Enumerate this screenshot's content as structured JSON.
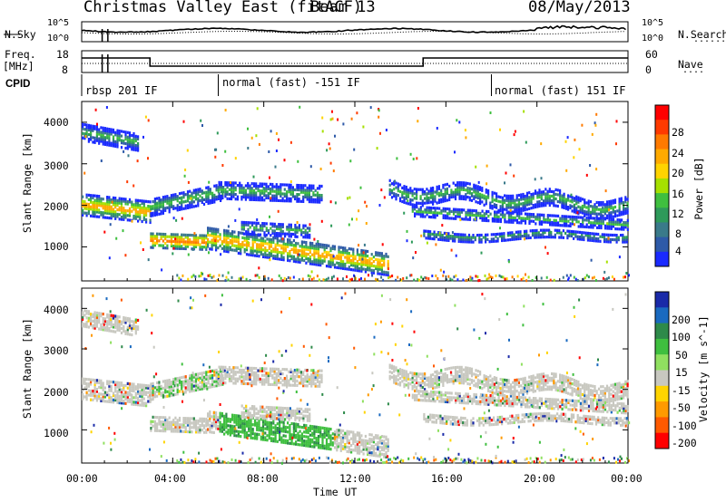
{
  "header": {
    "title": "Christmas Valley East (fitACF)",
    "beam": "Beam 13",
    "date": "08/May/2013"
  },
  "top_panels": {
    "nsky_label": "N.Sky",
    "nsearch_label": "N.Search",
    "noise_ticks_left": [
      "10^5",
      "10^0"
    ],
    "noise_ticks_right": [
      "10^5",
      "10^0"
    ],
    "freq_label_line1": "Freq.",
    "freq_label_line2": "[MHz]",
    "freq_ticks": [
      "18",
      "8"
    ],
    "nave_label": "Nave",
    "nave_ticks": [
      "60",
      "0"
    ],
    "cpid_label": "CPID",
    "cpid_modes": [
      {
        "label": "rbsp 201 IF",
        "start_hour": 0
      },
      {
        "label": "normal (fast) -151 IF",
        "start_hour": 6
      },
      {
        "label": "normal (fast) 151 IF",
        "start_hour": 18
      }
    ],
    "freq_steps": [
      {
        "start_hour": 0,
        "end_hour": 3,
        "level": "high"
      },
      {
        "start_hour": 3,
        "end_hour": 15,
        "level": "low"
      },
      {
        "start_hour": 15,
        "end_hour": 24,
        "level": "high"
      }
    ]
  },
  "chart_data": [
    {
      "type": "heatmap",
      "name": "power",
      "ylabel": "Slant Range [km]",
      "yticks": [
        "4000",
        "3000",
        "2000",
        "1000"
      ],
      "ylim": [
        180,
        4500
      ],
      "colorbar_label": "Power [dB]",
      "colorbar_ticks": [
        "28",
        "24",
        "20",
        "16",
        "12",
        "8",
        "4"
      ],
      "colorbar_colors": [
        "#ff0000",
        "#ff3a00",
        "#ff7a00",
        "#ffaa00",
        "#ffd400",
        "#a6e000",
        "#3fbf3f",
        "#2e9a5a",
        "#3a7a8a",
        "#2e5aa8",
        "#1a2aff"
      ]
    },
    {
      "type": "heatmap",
      "name": "velocity",
      "ylabel": "Slant Range [km]",
      "yticks": [
        "4000",
        "3000",
        "2000",
        "1000"
      ],
      "ylim": [
        180,
        4500
      ],
      "colorbar_label": "Velocity [m s^-1]",
      "colorbar_ticks": [
        "200",
        "100",
        "50",
        "15",
        "-15",
        "-50",
        "-100",
        "-200"
      ],
      "colorbar_colors": [
        "#1a2aa8",
        "#1a6ac0",
        "#2e8a4a",
        "#3fbf3f",
        "#90e060",
        "#c8c8c0",
        "#ffd400",
        "#ff9a00",
        "#ff5a00",
        "#ff0000"
      ]
    }
  ],
  "xaxis": {
    "label": "Time UT",
    "ticks": [
      "00:00",
      "04:00",
      "08:00",
      "12:00",
      "16:00",
      "20:00",
      "00:00"
    ]
  },
  "colors": {
    "ground_scatter": "#c8c8c0"
  }
}
